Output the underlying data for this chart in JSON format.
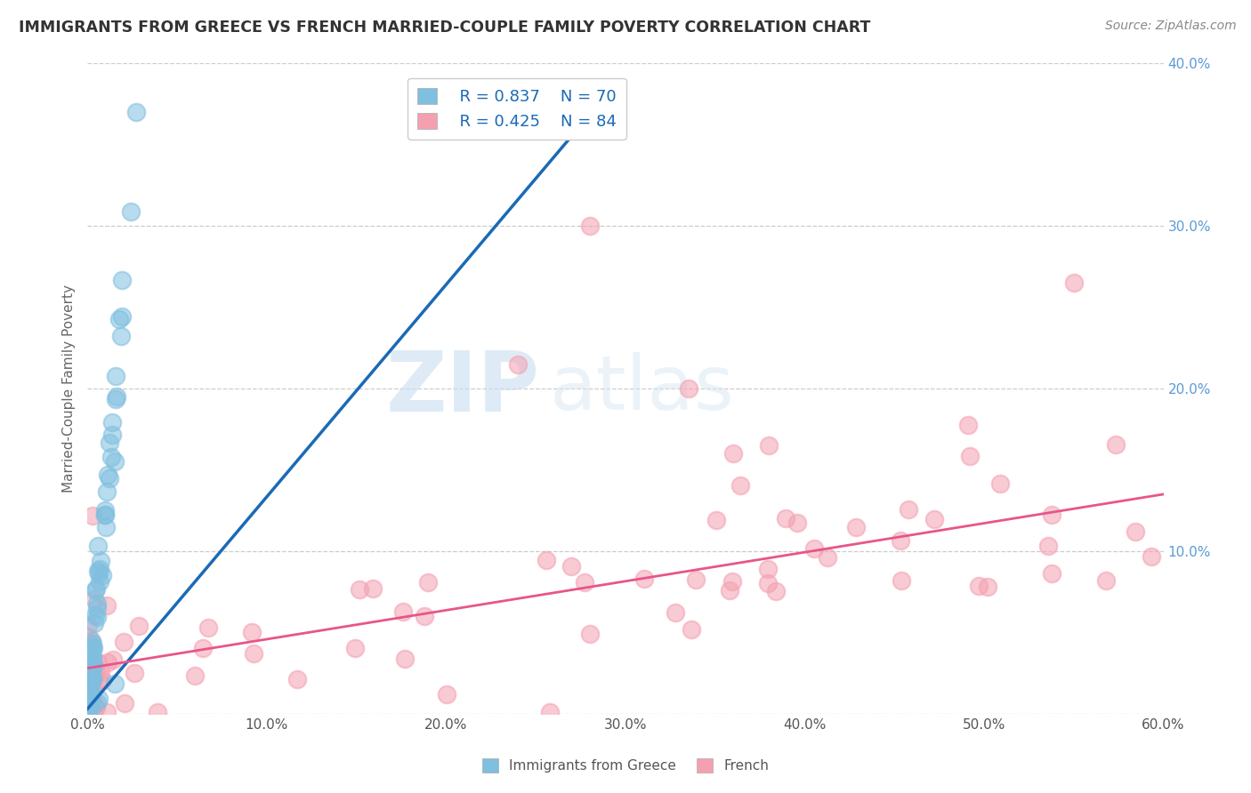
{
  "title": "IMMIGRANTS FROM GREECE VS FRENCH MARRIED-COUPLE FAMILY POVERTY CORRELATION CHART",
  "source": "Source: ZipAtlas.com",
  "ylabel_left": "Married-Couple Family Poverty",
  "xlim": [
    0,
    0.6
  ],
  "ylim": [
    0,
    0.4
  ],
  "xtick_vals": [
    0.0,
    0.1,
    0.2,
    0.3,
    0.4,
    0.5,
    0.6
  ],
  "ytick_vals": [
    0.0,
    0.1,
    0.2,
    0.3,
    0.4
  ],
  "legend_r1": "R = 0.837",
  "legend_n1": "N = 70",
  "legend_r2": "R = 0.425",
  "legend_n2": "N = 84",
  "legend_label1": "Immigrants from Greece",
  "legend_label2": "French",
  "color_greece": "#7fbfdf",
  "color_french": "#f4a0b0",
  "trendline_color_greece": "#1a6ab5",
  "trendline_color_french": "#e8558a",
  "watermark_zip": "ZIP",
  "watermark_atlas": "atlas",
  "background_color": "#ffffff",
  "right_tick_color": "#5b9bd5",
  "greece_trend_x": [
    0.0,
    0.295
  ],
  "greece_trend_y": [
    0.003,
    0.388
  ],
  "french_trend_x": [
    0.0,
    0.6
  ],
  "french_trend_y": [
    0.028,
    0.135
  ]
}
